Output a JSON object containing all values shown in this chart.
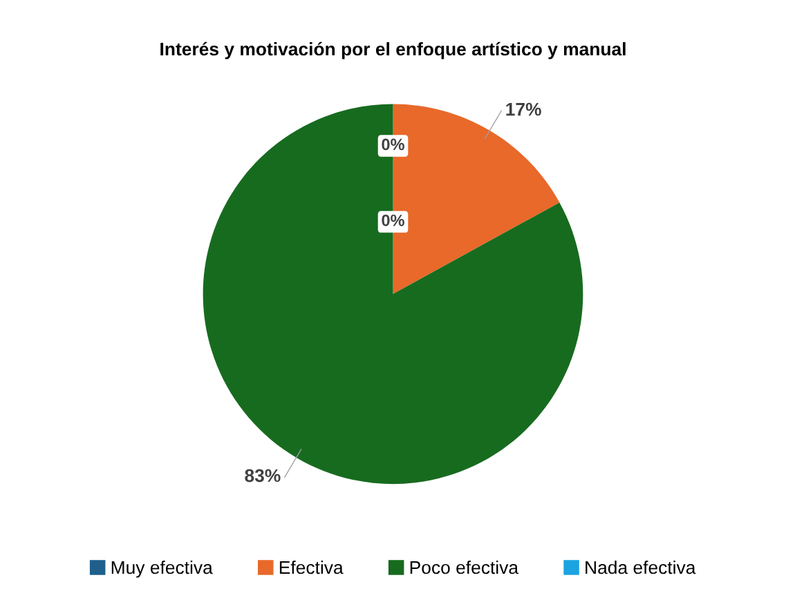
{
  "chart_data": {
    "type": "pie",
    "title": "Interés y motivación por el enfoque artístico y manual",
    "categories": [
      "Muy efectiva",
      "Efectiva",
      "Poco efectiva",
      "Nada efectiva"
    ],
    "values": [
      0,
      17,
      83,
      0
    ],
    "colors": [
      "#1f5f8b",
      "#e8692a",
      "#176b1f",
      "#1ca4e0"
    ],
    "value_labels": [
      "0%",
      "17%",
      "83%",
      "0%"
    ],
    "legend": "bottom"
  }
}
